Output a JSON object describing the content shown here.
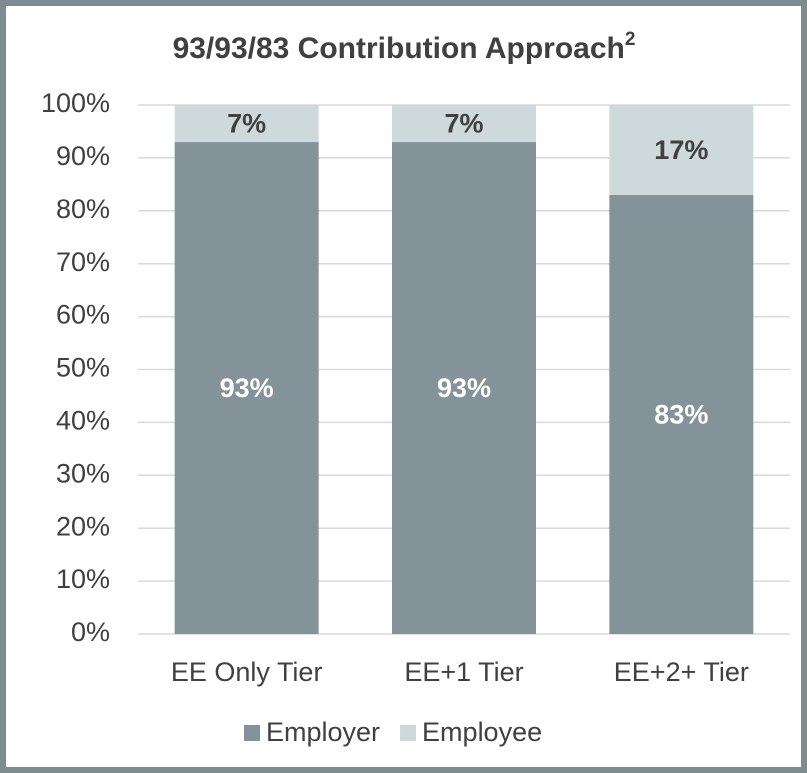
{
  "chart_data": {
    "type": "stacked_bar",
    "title": "93/93/83 Contribution Approach",
    "title_footnote": "2",
    "categories": [
      "EE Only Tier",
      "EE+1 Tier",
      "EE+2+ Tier"
    ],
    "series": [
      {
        "name": "Employer",
        "color": "#84939a",
        "values": [
          93,
          93,
          83
        ],
        "value_labels": [
          "93%",
          "93%",
          "83%"
        ],
        "label_color": "#ffffff"
      },
      {
        "name": "Employee",
        "color": "#ced9dc",
        "values": [
          7,
          7,
          17
        ],
        "value_labels": [
          "7%",
          "7%",
          "17%"
        ],
        "label_color": "#404040"
      }
    ],
    "ylim": [
      0,
      100
    ],
    "yticks": [
      {
        "value": 0,
        "label": "0%"
      },
      {
        "value": 10,
        "label": "10%"
      },
      {
        "value": 20,
        "label": "20%"
      },
      {
        "value": 30,
        "label": "30%"
      },
      {
        "value": 40,
        "label": "40%"
      },
      {
        "value": 50,
        "label": "50%"
      },
      {
        "value": 60,
        "label": "60%"
      },
      {
        "value": 70,
        "label": "70%"
      },
      {
        "value": 80,
        "label": "80%"
      },
      {
        "value": 90,
        "label": "90%"
      },
      {
        "value": 100,
        "label": "100%"
      }
    ],
    "grid": true,
    "legend": "bottom"
  }
}
